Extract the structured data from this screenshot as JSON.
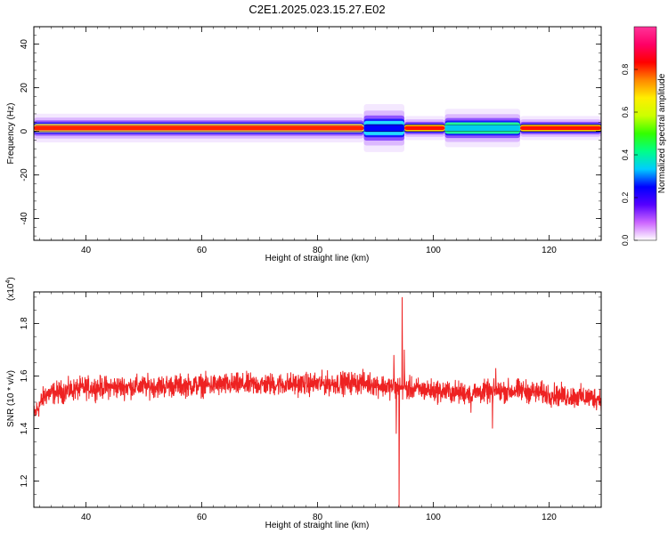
{
  "figure": {
    "title": "C2E1.2025.023.15.27.E02"
  },
  "chart_data": [
    {
      "type": "heatmap",
      "xlabel": "Height of straight line (km)",
      "ylabel": "Frequency (Hz)",
      "xlim": [
        31,
        129
      ],
      "ylim": [
        -50,
        48
      ],
      "xticks": [
        40,
        60,
        80,
        100,
        120
      ],
      "yticks": [
        -40,
        -20,
        0,
        20,
        40
      ],
      "band_center_hz": 1.5,
      "band_features": [
        {
          "x": [
            31,
            88
          ],
          "half_width_hz": 3,
          "core": "red-yellow"
        },
        {
          "x": [
            88,
            95
          ],
          "half_width_hz": 5,
          "core": "blue-cyan",
          "note": "widening near 92 km"
        },
        {
          "x": [
            95,
            102
          ],
          "half_width_hz": 2.5,
          "core": "red"
        },
        {
          "x": [
            102,
            115
          ],
          "half_width_hz": 4,
          "core": "cyan-green"
        },
        {
          "x": [
            115,
            129
          ],
          "half_width_hz": 2.5,
          "core": "red"
        }
      ],
      "colorbar": {
        "label": "Normalized spectral amplitude",
        "range": [
          0,
          1
        ],
        "ticks": [
          "0.0",
          "0.2",
          "0.4",
          "0.6",
          "0.8"
        ],
        "colors": [
          "#ffffff",
          "#cc66ff",
          "#5500ff",
          "#0000ff",
          "#00ccff",
          "#00ff88",
          "#33ff00",
          "#ccff00",
          "#ffee00",
          "#ff8800",
          "#ff0000",
          "#ff0066",
          "#ff3399"
        ]
      }
    },
    {
      "type": "line",
      "xlabel": "Height of straight line (km)",
      "ylabel": "SNR (10 * v/v)",
      "yscale_label": "(x10",
      "yscale_exp": "4",
      "xlim": [
        31,
        129
      ],
      "ylim": [
        1.1,
        1.92
      ],
      "xticks": [
        40,
        60,
        80,
        100,
        120
      ],
      "yticks": [
        1.2,
        1.4,
        1.6,
        1.8
      ],
      "color": "#ee2222",
      "baseline_keypoints": [
        [
          31,
          1.45
        ],
        [
          33,
          1.53
        ],
        [
          40,
          1.555
        ],
        [
          60,
          1.565
        ],
        [
          80,
          1.57
        ],
        [
          88,
          1.575
        ],
        [
          92,
          1.56
        ],
        [
          97,
          1.55
        ],
        [
          105,
          1.535
        ],
        [
          115,
          1.545
        ],
        [
          122,
          1.525
        ],
        [
          129,
          1.515
        ]
      ],
      "noise_amplitude": 0.03,
      "spikes": [
        {
          "x": 93.2,
          "y": 1.68
        },
        {
          "x": 93.6,
          "y": 1.38
        },
        {
          "x": 94.1,
          "y": 1.1
        },
        {
          "x": 94.6,
          "y": 1.9
        },
        {
          "x": 95.0,
          "y": 1.7
        },
        {
          "x": 95.5,
          "y": 1.52
        },
        {
          "x": 110.2,
          "y": 1.4
        },
        {
          "x": 110.8,
          "y": 1.63
        },
        {
          "x": 106.5,
          "y": 1.46
        }
      ]
    }
  ]
}
